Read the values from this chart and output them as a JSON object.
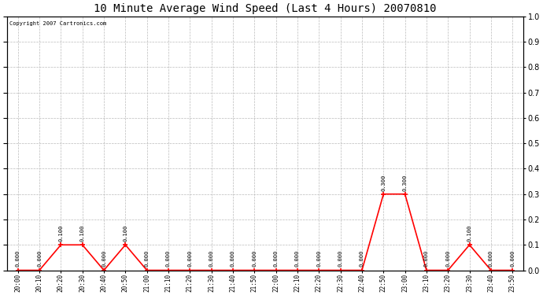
{
  "title": "10 Minute Average Wind Speed (Last 4 Hours) 20070810",
  "copyright_text": "Copyright 2007 Cartronics.com",
  "x_labels": [
    "20:00",
    "20:10",
    "20:20",
    "20:30",
    "20:40",
    "20:50",
    "21:00",
    "21:10",
    "21:20",
    "21:30",
    "21:40",
    "21:50",
    "22:00",
    "22:10",
    "22:20",
    "22:30",
    "22:40",
    "22:50",
    "23:00",
    "23:10",
    "23:20",
    "23:30",
    "23:40",
    "23:50"
  ],
  "y_values": [
    0.0,
    0.0,
    0.1,
    0.1,
    0.0,
    0.1,
    0.0,
    0.0,
    0.0,
    0.0,
    0.0,
    0.0,
    0.0,
    0.0,
    0.0,
    0.0,
    0.0,
    0.3,
    0.3,
    0.0,
    0.0,
    0.1,
    0.0,
    0.0
  ],
  "line_color": "#ff0000",
  "marker_color": "#ff0000",
  "background_color": "#ffffff",
  "grid_color": "#bbbbbb",
  "title_fontsize": 10,
  "ylim": [
    0.0,
    1.0
  ],
  "yticks": [
    0.0,
    0.1,
    0.2,
    0.3,
    0.4,
    0.5,
    0.6,
    0.7,
    0.8,
    0.9,
    1.0
  ]
}
